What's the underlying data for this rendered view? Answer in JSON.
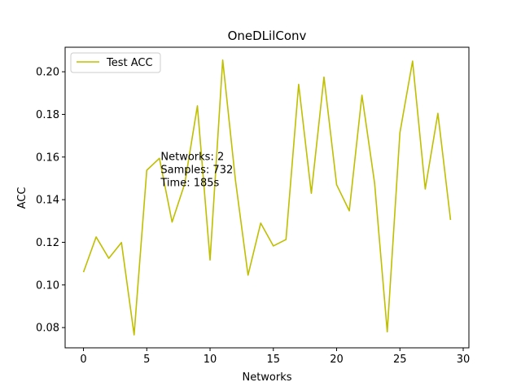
{
  "chart_data": {
    "type": "line",
    "title": "OneDLilConv",
    "xlabel": "Networks",
    "ylabel": "ACC",
    "xlim": [
      -1.45,
      30.45
    ],
    "ylim": [
      0.0705,
      0.2115
    ],
    "xticks": [
      0,
      5,
      10,
      15,
      20,
      25,
      30
    ],
    "yticks": [
      0.08,
      0.1,
      0.12,
      0.14,
      0.16,
      0.18,
      0.2
    ],
    "ytick_labels": [
      "0.08",
      "0.10",
      "0.12",
      "0.14",
      "0.16",
      "0.18",
      "0.20"
    ],
    "grid": false,
    "legend_position": "top-left",
    "series": [
      {
        "name": "Test ACC",
        "color": "#bfbf00",
        "x": [
          0,
          1,
          2,
          3,
          4,
          5,
          6,
          7,
          8,
          9,
          10,
          11,
          12,
          13,
          14,
          15,
          16,
          17,
          18,
          19,
          20,
          21,
          22,
          23,
          24,
          25,
          26,
          27,
          28,
          29
        ],
        "values": [
          0.106,
          0.1225,
          0.1125,
          0.1199,
          0.0766,
          0.1538,
          0.1594,
          0.1295,
          0.1475,
          0.184,
          0.1117,
          0.2055,
          0.1494,
          0.1046,
          0.129,
          0.1183,
          0.1213,
          0.1941,
          0.143,
          0.1975,
          0.147,
          0.1348,
          0.189,
          0.1478,
          0.078,
          0.1714,
          0.205,
          0.145,
          0.1805,
          0.1305
        ]
      }
    ],
    "annotation": {
      "lines": [
        "Networks: 2",
        "Samples: 732",
        "Time: 185s"
      ],
      "anchor": [
        6.1,
        0.1585
      ]
    }
  }
}
